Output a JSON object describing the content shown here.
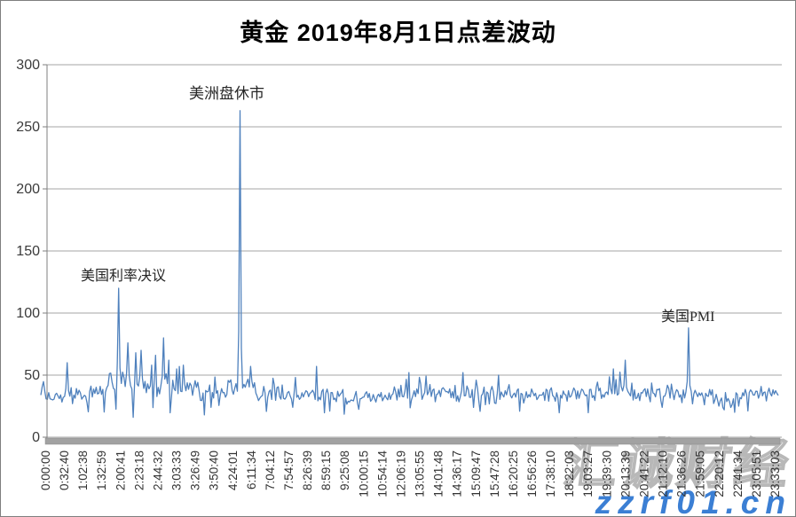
{
  "title": "黄金 2019年8月1日点差波动",
  "watermark": {
    "brand_cjk": "汇诚财经",
    "brand_url": "zzrf01.cn",
    "url_color": "#3b7fd4"
  },
  "chart_data": {
    "type": "line",
    "title": "黄金 2019年8月1日点差波动",
    "xlabel": "",
    "ylabel": "",
    "ylim": [
      0,
      300
    ],
    "yticks": [
      0,
      50,
      100,
      150,
      200,
      250,
      300
    ],
    "grid": "horizontal-gridlines-on",
    "legend": "none",
    "line_color": "#4F81BD",
    "gridline_color": "#a6a6a6",
    "axis_color": "#7f7f7f",
    "tick_label_color": "#333333",
    "scrollbar_color": "#a2a2a2",
    "x_tick_labels": [
      "0:00:00",
      "0:32:40",
      "1:02:38",
      "1:32:59",
      "2:00:41",
      "2:23:18",
      "2:44:32",
      "3:03:33",
      "3:26:49",
      "3:50:40",
      "4:24:01",
      "6:11:34",
      "7:04:12",
      "7:54:57",
      "8:26:39",
      "8:59:15",
      "9:25:08",
      "10:00:15",
      "10:54:14",
      "12:06:19",
      "13:05:55",
      "14:01:48",
      "14:36:17",
      "15:09:47",
      "15:47:28",
      "16:20:25",
      "16:56:26",
      "17:38:10",
      "18:22:03",
      "19:03:27",
      "19:39:30",
      "20:13:39",
      "20:41:22",
      "21:12:10",
      "21:36:26",
      "21:59:05",
      "22:20:12",
      "22:41:34",
      "23:05:51",
      "23:33:03"
    ],
    "annotations": [
      {
        "text": "美国利率决议",
        "near_time": "2:00:41",
        "peak_value": 120
      },
      {
        "text": "美洲盘休市",
        "near_time": "4:24:01",
        "peak_value": 263
      },
      {
        "text": "美国PMI",
        "near_time": "21:36:26",
        "peak_value": 88
      }
    ],
    "key_points": [
      {
        "time": "0:00:00",
        "spread": 33
      },
      {
        "time": "2:00:41",
        "spread": 120,
        "event": "美国利率决议"
      },
      {
        "time": "2:23:18",
        "spread": 76
      },
      {
        "time": "3:03:33",
        "spread": 80
      },
      {
        "time": "3:50:40",
        "spread": 58
      },
      {
        "time": "4:24:01",
        "spread": 263,
        "event": "美洲盘休市"
      },
      {
        "time": "8:26:39",
        "spread": 57
      },
      {
        "time": "20:41:22",
        "spread": 62
      },
      {
        "time": "21:36:26",
        "spread": 88,
        "event": "美国PMI"
      },
      {
        "time": "22:41:34",
        "spread": 20
      },
      {
        "time": "23:33:03",
        "spread": 40
      }
    ],
    "series_profile": {
      "comment": "dense 1-second tick noise band; envelope = [x_fraction, mean, amplitude], spikes = [x_fraction, value]",
      "samples": 560,
      "noise_seed": 20190801,
      "baseline_mean": 35,
      "baseline_range": [
        20,
        50
      ],
      "envelope": [
        [
          0.0,
          33,
          9
        ],
        [
          0.03,
          34,
          9
        ],
        [
          0.06,
          34,
          8
        ],
        [
          0.085,
          37,
          10
        ],
        [
          0.095,
          44,
          15
        ],
        [
          0.11,
          46,
          16
        ],
        [
          0.13,
          44,
          16
        ],
        [
          0.15,
          43,
          15
        ],
        [
          0.17,
          41,
          13
        ],
        [
          0.19,
          39,
          11
        ],
        [
          0.21,
          38,
          10
        ],
        [
          0.24,
          37,
          9
        ],
        [
          0.258,
          41,
          10
        ],
        [
          0.275,
          40,
          10
        ],
        [
          0.3,
          36,
          9
        ],
        [
          0.34,
          35,
          9
        ],
        [
          0.38,
          34,
          9
        ],
        [
          0.42,
          33,
          9
        ],
        [
          0.46,
          33,
          8
        ],
        [
          0.5,
          35,
          9
        ],
        [
          0.54,
          36,
          10
        ],
        [
          0.58,
          35,
          9
        ],
        [
          0.62,
          34,
          9
        ],
        [
          0.66,
          34,
          9
        ],
        [
          0.7,
          34,
          9
        ],
        [
          0.74,
          35,
          9
        ],
        [
          0.78,
          37,
          10
        ],
        [
          0.82,
          36,
          9
        ],
        [
          0.86,
          35,
          9
        ],
        [
          0.88,
          34,
          9
        ],
        [
          0.91,
          33,
          9
        ],
        [
          0.935,
          30,
          10
        ],
        [
          0.96,
          35,
          9
        ],
        [
          1.0,
          38,
          8
        ]
      ],
      "spikes": [
        [
          0.036,
          60
        ],
        [
          0.106,
          120
        ],
        [
          0.118,
          76
        ],
        [
          0.125,
          16
        ],
        [
          0.129,
          68
        ],
        [
          0.136,
          70
        ],
        [
          0.15,
          58
        ],
        [
          0.156,
          66
        ],
        [
          0.166,
          80
        ],
        [
          0.174,
          62
        ],
        [
          0.185,
          55
        ],
        [
          0.193,
          58
        ],
        [
          0.221,
          18
        ],
        [
          0.271,
          263
        ],
        [
          0.285,
          57
        ],
        [
          0.373,
          57
        ],
        [
          0.499,
          52
        ],
        [
          0.572,
          52
        ],
        [
          0.62,
          50
        ],
        [
          0.776,
          55
        ],
        [
          0.792,
          62
        ],
        [
          0.878,
          88
        ],
        [
          0.941,
          20
        ]
      ]
    }
  }
}
